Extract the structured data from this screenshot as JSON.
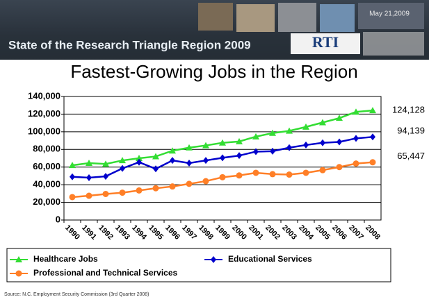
{
  "chart_data": {
    "type": "line",
    "header": "State of the Research Triangle Region 2009",
    "date": "May 21,2009",
    "logo": "RTI",
    "title": "Fastest-Growing Jobs in the Region",
    "source": "Source: N.C. Employment Security Commission (3rd Quarter 2008)",
    "categories": [
      "1990",
      "1991",
      "1992",
      "1993",
      "1994",
      "1995",
      "1996",
      "1997",
      "1998",
      "1999",
      "2000",
      "2001",
      "2002",
      "2003",
      "2004",
      "2005",
      "2006",
      "2007",
      "2008"
    ],
    "ylim": [
      0,
      140000
    ],
    "yticks": [
      0,
      {
        "value": 20000,
        "label": "20,000"
      },
      {
        "value": 40000,
        "label": "40,000"
      },
      {
        "value": 60000,
        "label": "60,000"
      },
      {
        "value": 80000,
        "label": "80,000"
      },
      {
        "value": 100000,
        "label": "100,000"
      },
      {
        "value": 120000,
        "label": "120,000"
      },
      {
        "value": 140000,
        "label": "140,000"
      }
    ],
    "grid": true,
    "legend": "bottom",
    "series": [
      {
        "name": "Healthcare Jobs",
        "color": "#33dd33",
        "marker": "triangle",
        "values": [
          62000,
          64500,
          63500,
          67500,
          70000,
          72000,
          78500,
          82000,
          84500,
          87500,
          89000,
          94500,
          98500,
          101000,
          105500,
          110500,
          115500,
          122500,
          124128
        ],
        "value_labels": [
          null,
          null,
          null,
          null,
          null,
          null,
          null,
          null,
          null,
          null,
          null,
          null,
          null,
          null,
          null,
          null,
          null,
          null,
          "124,128"
        ]
      },
      {
        "name": "Educational Services",
        "color": "#0000cc",
        "marker": "diamond",
        "values": [
          49000,
          48000,
          49500,
          58500,
          65500,
          58000,
          67500,
          64500,
          67500,
          70500,
          73000,
          77500,
          78000,
          82000,
          85000,
          87500,
          88500,
          92500,
          94139
        ],
        "value_labels": [
          null,
          null,
          null,
          null,
          null,
          null,
          null,
          null,
          null,
          null,
          null,
          null,
          null,
          null,
          null,
          null,
          null,
          null,
          "94,139"
        ]
      },
      {
        "name": "Professional and Technical Services",
        "color": "#ff7f27",
        "marker": "circle",
        "values": [
          26000,
          27500,
          29500,
          31000,
          33500,
          36000,
          38000,
          41000,
          44000,
          48500,
          50500,
          53500,
          52000,
          51500,
          53500,
          56500,
          60000,
          64000,
          65447
        ],
        "value_labels": [
          null,
          null,
          null,
          null,
          null,
          null,
          null,
          null,
          null,
          null,
          null,
          null,
          null,
          null,
          null,
          null,
          null,
          null,
          "65,447"
        ]
      }
    ]
  }
}
